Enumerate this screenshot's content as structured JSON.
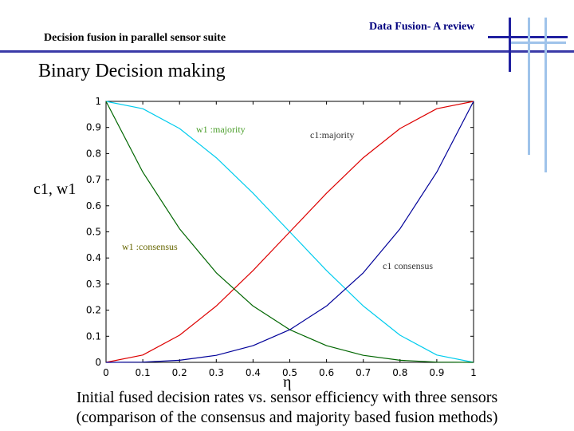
{
  "header": {
    "left_title": "Decision fusion in parallel sensor suite",
    "right_title": "Data Fusion- A review",
    "heading": "Binary Decision making"
  },
  "colors": {
    "accent_dark": "#2020a0",
    "accent_light": "#9fc3ea",
    "w1_majority": "#00ccee",
    "c1_majority": "#dd0000",
    "w1_consensus": "#006600",
    "c1_consensus": "#000099"
  },
  "caption": {
    "line1": "Initial fused decision rates vs. sensor efficiency with three sensors",
    "line2": "(comparison of the consensus and majority based fusion methods)"
  },
  "chart_data": {
    "type": "line",
    "xlabel": "η",
    "ylabel": "c1, w1",
    "xlim": [
      0,
      1
    ],
    "ylim": [
      0,
      1
    ],
    "grid": false,
    "xticks": [
      "0",
      "0.1",
      "0.2",
      "0.3",
      "0.4",
      "0.5",
      "0.6",
      "0.7",
      "0.8",
      "0.9",
      "1"
    ],
    "yticks": [
      "0",
      "0.1",
      "0.2",
      "0.3",
      "0.4",
      "0.5",
      "0.6",
      "0.7",
      "0.8",
      "0.9",
      "1"
    ],
    "x": [
      0,
      0.1,
      0.2,
      0.3,
      0.4,
      0.5,
      0.6,
      0.7,
      0.8,
      0.9,
      1
    ],
    "series": [
      {
        "name": "w1 :majority",
        "values": [
          1.0,
          0.972,
          0.896,
          0.784,
          0.648,
          0.5,
          0.352,
          0.216,
          0.104,
          0.028,
          0.0
        ]
      },
      {
        "name": "c1:majority",
        "values": [
          0.0,
          0.028,
          0.104,
          0.216,
          0.352,
          0.5,
          0.648,
          0.784,
          0.896,
          0.972,
          1.0
        ]
      },
      {
        "name": "w1 :consensus",
        "values": [
          1.0,
          0.729,
          0.512,
          0.343,
          0.216,
          0.125,
          0.064,
          0.027,
          0.008,
          0.001,
          0.0
        ]
      },
      {
        "name": "c1 consensus",
        "values": [
          0.0,
          0.001,
          0.008,
          0.027,
          0.064,
          0.125,
          0.216,
          0.343,
          0.512,
          0.729,
          1.0
        ]
      }
    ]
  }
}
